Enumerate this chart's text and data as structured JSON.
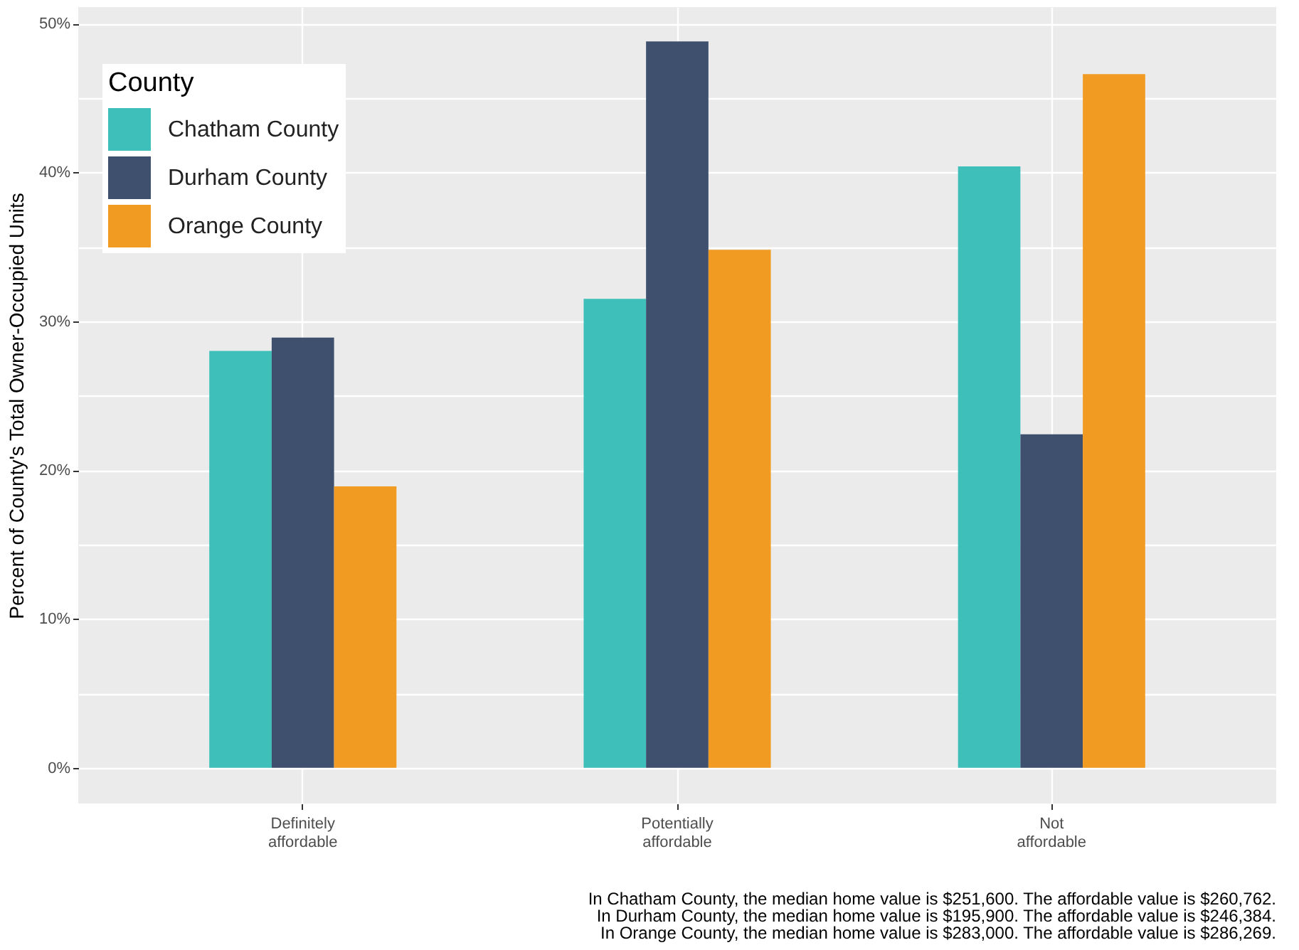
{
  "chart_data": {
    "type": "bar",
    "categories": [
      "Definitely\naffordable",
      "Potentially\naffordable",
      "Not\naffordable"
    ],
    "series": [
      {
        "name": "Chatham County",
        "color": "#3fbfba",
        "values": [
          28.0,
          31.5,
          40.4
        ]
      },
      {
        "name": "Durham County",
        "color": "#3f506e",
        "values": [
          28.9,
          48.8,
          22.4
        ]
      },
      {
        "name": "Orange County",
        "color": "#f19b22",
        "values": [
          18.9,
          34.8,
          46.6
        ]
      }
    ],
    "ylabel": "Percent of County's Total Owner-Occupied Units",
    "legend_title": "County",
    "legend": "top left",
    "ylim": [
      -2.4,
      51.1
    ],
    "yticks": [
      {
        "value": 0,
        "label": "0%"
      },
      {
        "value": 5,
        "label": null
      },
      {
        "value": 10,
        "label": "10%"
      },
      {
        "value": 15,
        "label": null
      },
      {
        "value": 20,
        "label": "20%"
      },
      {
        "value": 25,
        "label": null
      },
      {
        "value": 30,
        "label": "30%"
      },
      {
        "value": 35,
        "label": null
      },
      {
        "value": 40,
        "label": "40%"
      },
      {
        "value": 45,
        "label": null
      },
      {
        "value": 50,
        "label": "50%"
      }
    ],
    "grid": true,
    "annotations": [
      "In Chatham County, the median home value is $251,600. The affordable value is $260,762.",
      "In Durham County, the median home value is $195,900. The affordable value is $246,384.",
      "In Orange County, the median home value is $283,000. The affordable value is $286,269."
    ]
  }
}
